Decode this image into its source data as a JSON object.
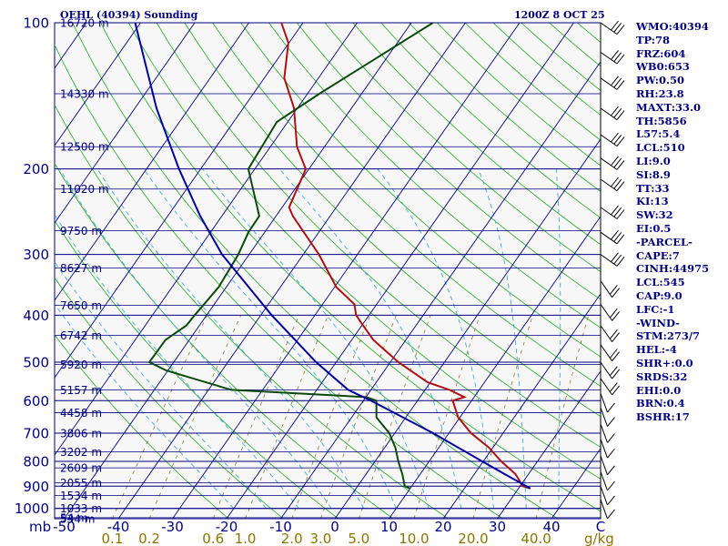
{
  "header": {
    "station": "OEHL (40394) Sounding",
    "time": "1200Z  8 OCT 25"
  },
  "axes": {
    "pressure_ticks": [
      "100",
      "200",
      "300",
      "400",
      "500",
      "600",
      "700",
      "800",
      "900",
      "1000"
    ],
    "pressure_unit": "mb",
    "temp_ticks": [
      "-50",
      "-40",
      "-30",
      "-20",
      "-10",
      "0",
      "10",
      "20",
      "30",
      "40"
    ],
    "temp_unit": "C",
    "mixing_ratio_ticks": [
      "0.1",
      "0.2",
      "0.6",
      "1.0",
      "2.0",
      "3.0",
      "5.0",
      "10.0",
      "20.0",
      "40.0"
    ],
    "mixing_ratio_unit": "g/kg",
    "height_labels": [
      "16720 m",
      "14330 m",
      "12500 m",
      "11020 m",
      "9750 m",
      "8627 m",
      "7650 m",
      "6742 m",
      "5920 m",
      "5157 m",
      "4458 m",
      "3806 m",
      "3202 m",
      "2609 m",
      "2055 m",
      "1534 m",
      "1033 m",
      "534 m",
      "54 m"
    ]
  },
  "indices": [
    "WMO:40394",
    "TP:78",
    "FRZ:604",
    "WB0:653",
    "PW:0.50",
    "RH:23.8",
    "MAXT:33.0",
    "TH:5856",
    "L57:5.4",
    "LCL:510",
    "LI:9.0",
    "SI:8.9",
    "TT:33",
    "KI:13",
    "SW:32",
    "EI:0.5",
    "-PARCEL-",
    "CAPE:7",
    "CINH:44975",
    "LCL:545",
    "CAP:9.0",
    "LFC:-1",
    "-WIND-",
    "STM:273/7",
    "HEL:-4",
    "SHR+:0.0",
    "SRDS:32",
    "EHI:0.0",
    "BRN:0.4",
    "BSHR:17"
  ],
  "colors": {
    "temperature": "#b01010",
    "dewpoint": "#0a4a0a",
    "parcel": "#0000a0",
    "isobars": "#000080",
    "isotherms": "#000080",
    "dry_adiabats": "#22aa22",
    "moist_adiabats": "#44aadd",
    "mixing_ratio": "#8b7a3a"
  },
  "chart_data": {
    "type": "line",
    "subtype": "skew-T log-P sounding",
    "title": "OEHL (40394) Sounding",
    "xlabel": "C",
    "ylabel": "mb",
    "xlim": [
      -50,
      50
    ],
    "ylim": [
      1050,
      100
    ],
    "y_scale": "log",
    "series": [
      {
        "pressure": [
          910,
          900,
          850,
          800,
          750,
          700,
          650,
          600,
          590,
          570,
          550,
          500,
          450,
          420,
          400,
          380,
          350,
          300,
          250,
          240,
          200,
          180,
          150,
          130,
          110,
          100
        ],
        "temperature": [
          32.2,
          30.5,
          27.6,
          23.3,
          19.3,
          14.1,
          9.7,
          6.5,
          8.2,
          4.5,
          -0.5,
          -8.5,
          -16,
          -19.8,
          -22.4,
          -24.1,
          -29.7,
          -37.1,
          -46.9,
          -48.7,
          -50.6,
          -55.1,
          -60.6,
          -66.3,
          -70.1,
          -74.0
        ]
      },
      {
        "pressure": [
          910,
          900,
          850,
          800,
          750,
          700,
          650,
          600,
          590,
          570,
          520,
          500,
          450,
          420,
          400,
          350,
          300,
          270,
          250,
          200,
          160,
          140,
          100
        ],
        "dewpoint": [
          10,
          8.7,
          6.7,
          4.3,
          2.0,
          -1.0,
          -5.4,
          -7.6,
          -9.9,
          -35.8,
          -50.3,
          -54.5,
          -54.4,
          -52.4,
          -52.2,
          -51.4,
          -52.0,
          -53.0,
          -53.1,
          -61.2,
          -62.0,
          -57.8,
          -46.0
        ]
      },
      {
        "pressure": [
          910,
          850,
          800,
          700,
          600,
          570,
          500,
          400,
          300,
          250,
          200,
          150,
          100
        ],
        "parcel": [
          32.2,
          25.6,
          19.8,
          7.1,
          -8.6,
          -14.2,
          -23.7,
          -38.0,
          -55.0,
          -64.0,
          -74.0,
          -86.0,
          -101.0
        ]
      }
    ],
    "grid": true,
    "legend": "none"
  }
}
